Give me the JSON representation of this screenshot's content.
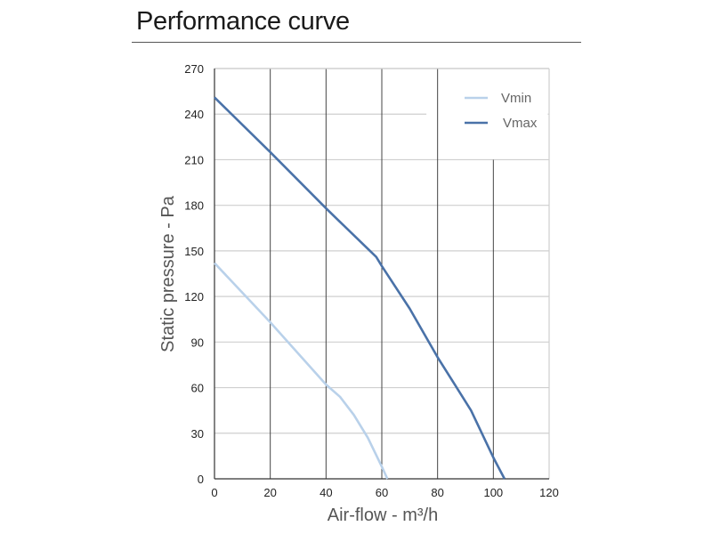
{
  "title": "Performance curve",
  "chart_data": {
    "type": "line",
    "title": "Performance curve",
    "xlabel": "Air-flow - m³/h",
    "ylabel": "Static pressure - Pa",
    "xlim": [
      0,
      120
    ],
    "ylim": [
      0,
      270
    ],
    "xticks": [
      "0",
      "20",
      "40",
      "60",
      "80",
      "100",
      "120"
    ],
    "yticks": [
      "0",
      "30",
      "60",
      "90",
      "120",
      "150",
      "180",
      "210",
      "240",
      "270"
    ],
    "grid": true,
    "legend": "top-right",
    "series": [
      {
        "name": "Vmin",
        "color": "#b9d1ea",
        "x": [
          0,
          20,
          40,
          45,
          50,
          55,
          60,
          62
        ],
        "y": [
          142,
          103,
          62,
          54,
          42,
          27,
          8,
          0
        ]
      },
      {
        "name": "Vmax",
        "color": "#4a72a8",
        "x": [
          0,
          20,
          40,
          58,
          60,
          70,
          80,
          92,
          100,
          104
        ],
        "y": [
          251,
          215,
          178,
          146,
          140,
          112,
          80,
          45,
          14,
          0
        ]
      }
    ]
  }
}
